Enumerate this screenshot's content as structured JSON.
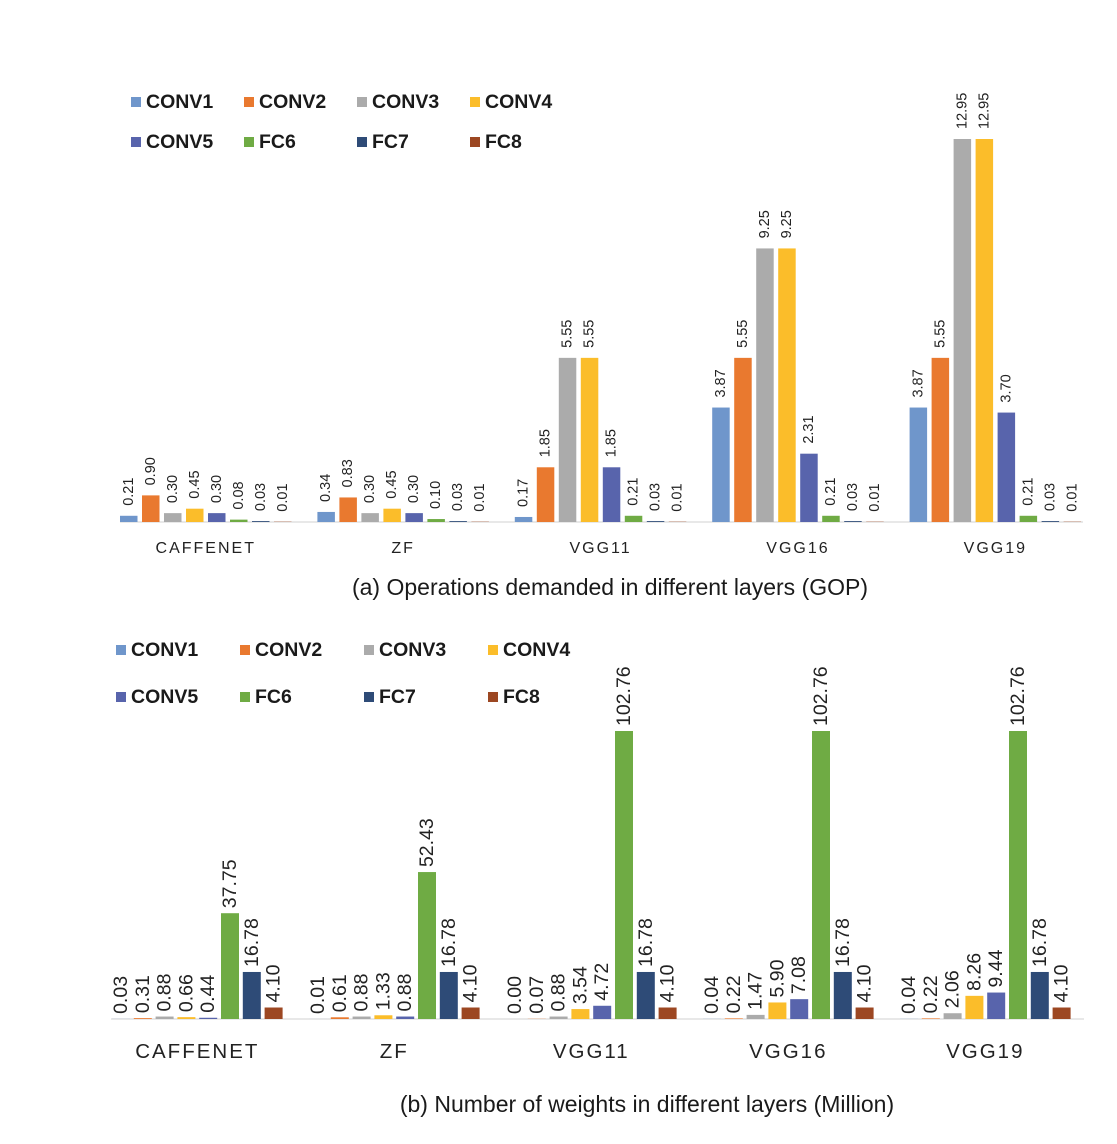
{
  "colors": {
    "CONV1": "#6f96cb",
    "CONV2": "#e9792f",
    "CONV3": "#ababab",
    "CONV4": "#fbbd2a",
    "CONV5": "#5864ac",
    "FC6": "#6fab44",
    "FC7": "#2e4b77",
    "FC8": "#9c4722"
  },
  "chart_data": [
    {
      "type": "bar",
      "title": "(a) Operations demanded in different layers (GOP)",
      "categories": [
        "CAFFENET",
        "ZF",
        "VGG11",
        "VGG16",
        "VGG19"
      ],
      "legend_position": "top-left",
      "grid": false,
      "ylim": [
        0,
        14
      ],
      "series": [
        {
          "name": "CONV1",
          "values": [
            0.21,
            0.34,
            0.17,
            3.87,
            3.87
          ],
          "labels": [
            "0.21",
            "0.34",
            "0.17",
            "3.87",
            "3.87"
          ]
        },
        {
          "name": "CONV2",
          "values": [
            0.9,
            0.83,
            1.85,
            5.55,
            5.55
          ],
          "labels": [
            "0.90",
            "0.83",
            "1.85",
            "5.55",
            "5.55"
          ]
        },
        {
          "name": "CONV3",
          "values": [
            0.3,
            0.3,
            5.55,
            9.25,
            12.95
          ],
          "labels": [
            "0.30",
            "0.30",
            "5.55",
            "9.25",
            "12.95"
          ]
        },
        {
          "name": "CONV4",
          "values": [
            0.45,
            0.45,
            5.55,
            9.25,
            12.95
          ],
          "labels": [
            "0.45",
            "0.45",
            "5.55",
            "9.25",
            "12.95"
          ]
        },
        {
          "name": "CONV5",
          "values": [
            0.3,
            0.3,
            1.85,
            2.31,
            3.7
          ],
          "labels": [
            "0.30",
            "0.30",
            "1.85",
            "2.31",
            "3.70"
          ]
        },
        {
          "name": "FC6",
          "values": [
            0.08,
            0.1,
            0.21,
            0.21,
            0.21
          ],
          "labels": [
            "0.08",
            "0.10",
            "0.21",
            "0.21",
            "0.21"
          ]
        },
        {
          "name": "FC7",
          "values": [
            0.03,
            0.03,
            0.03,
            0.03,
            0.03
          ],
          "labels": [
            "0.03",
            "0.03",
            "0.03",
            "0.03",
            "0.03"
          ]
        },
        {
          "name": "FC8",
          "values": [
            0.01,
            0.01,
            0.01,
            0.01,
            0.01
          ],
          "labels": [
            "0.01",
            "0.01",
            "0.01",
            "0.01",
            "0.01"
          ]
        }
      ]
    },
    {
      "type": "bar",
      "title": "(b) Number of weights in different layers (Million)",
      "categories": [
        "CAFFENET",
        "ZF",
        "VGG11",
        "VGG16",
        "VGG19"
      ],
      "legend_position": "top-left",
      "grid": false,
      "ylim": [
        0,
        120
      ],
      "series": [
        {
          "name": "CONV1",
          "values": [
            0.03,
            0.01,
            0.0,
            0.04,
            0.04
          ],
          "labels": [
            "0.03",
            "0.01",
            "0.00",
            "0.04",
            "0.04"
          ]
        },
        {
          "name": "CONV2",
          "values": [
            0.31,
            0.61,
            0.07,
            0.22,
            0.22
          ],
          "labels": [
            "0.31",
            "0.61",
            "0.07",
            "0.22",
            "0.22"
          ]
        },
        {
          "name": "CONV3",
          "values": [
            0.88,
            0.88,
            0.88,
            1.47,
            2.06
          ],
          "labels": [
            "0.88",
            "0.88",
            "0.88",
            "1.47",
            "2.06"
          ]
        },
        {
          "name": "CONV4",
          "values": [
            0.66,
            1.33,
            3.54,
            5.9,
            8.26
          ],
          "labels": [
            "0.66",
            "1.33",
            "3.54",
            "5.90",
            "8.26"
          ]
        },
        {
          "name": "CONV5",
          "values": [
            0.44,
            0.88,
            4.72,
            7.08,
            9.44
          ],
          "labels": [
            "0.44",
            "0.88",
            "4.72",
            "7.08",
            "9.44"
          ]
        },
        {
          "name": "FC6",
          "values": [
            37.75,
            52.43,
            102.76,
            102.76,
            102.76
          ],
          "labels": [
            "37.75",
            "52.43",
            "102.76",
            "102.76",
            "102.76"
          ]
        },
        {
          "name": "FC7",
          "values": [
            16.78,
            16.78,
            16.78,
            16.78,
            16.78
          ],
          "labels": [
            "16.78",
            "16.78",
            "16.78",
            "16.78",
            "16.78"
          ]
        },
        {
          "name": "FC8",
          "values": [
            4.1,
            4.1,
            4.1,
            4.1,
            4.1
          ],
          "labels": [
            "4.10",
            "4.10",
            "4.10",
            "4.10",
            "4.10"
          ]
        }
      ]
    }
  ]
}
